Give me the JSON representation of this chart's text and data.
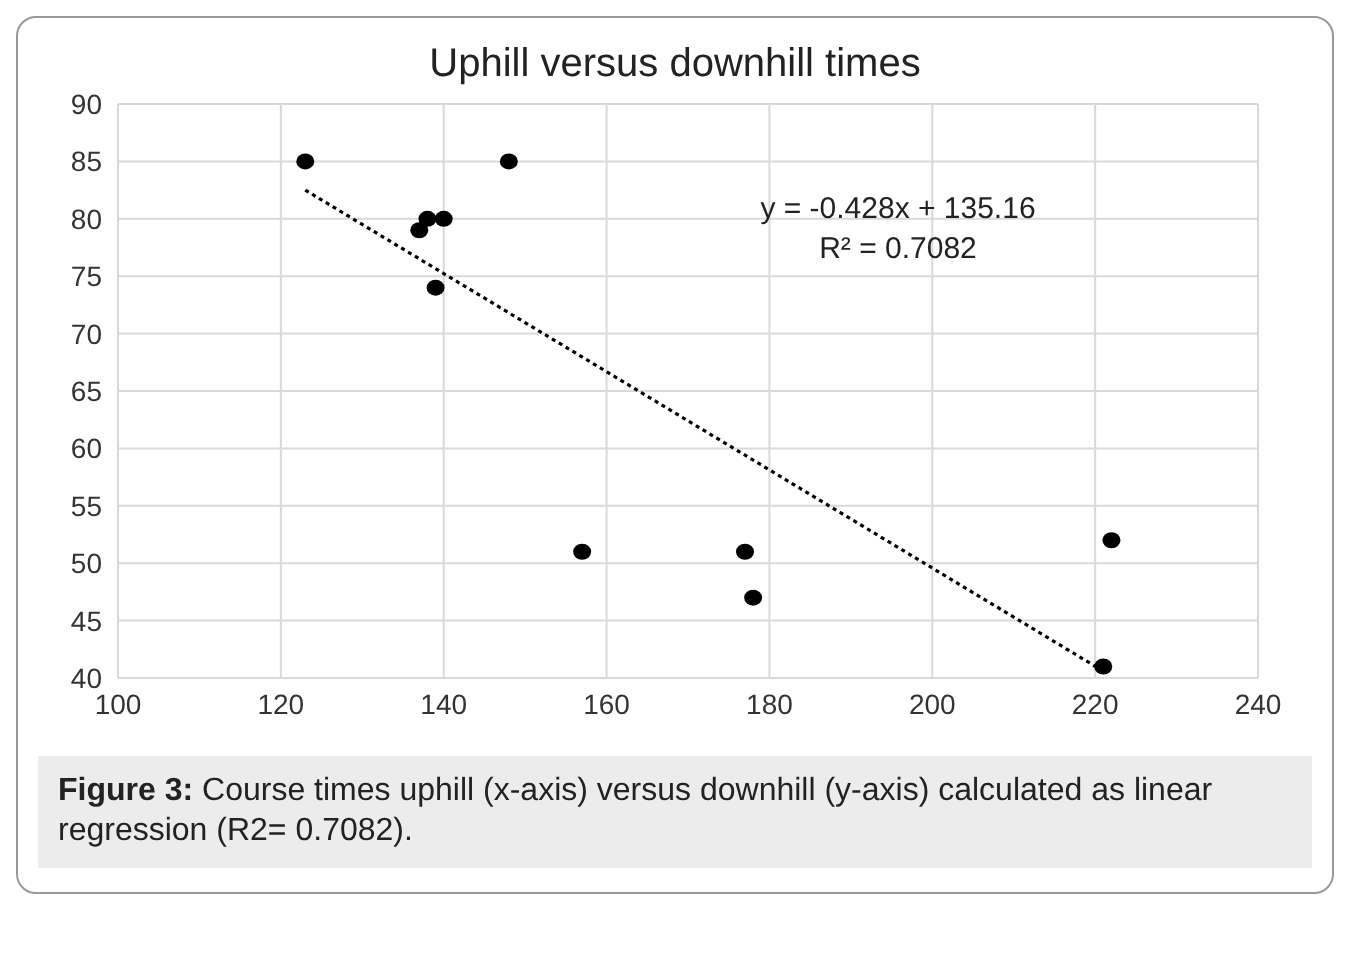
{
  "chart_data": {
    "type": "scatter",
    "title": "Uphill versus downhill times",
    "x": [
      123,
      137,
      138,
      140,
      139,
      148,
      157,
      177,
      178,
      221,
      222
    ],
    "series": [
      {
        "color": "#000000",
        "values": [
          85,
          79,
          80,
          80,
          74,
          85,
          51,
          51,
          47,
          41,
          52
        ]
      },
      {
        "type": "line",
        "color": "#000000",
        "x": [
          123,
          221
        ],
        "values": [
          82.5,
          40.6
        ],
        "line_style": "dotted",
        "marker": "none"
      }
    ],
    "xlim": [
      100,
      240
    ],
    "xticks": [
      100,
      120,
      140,
      160,
      180,
      200,
      220,
      240
    ],
    "ylim": [
      40,
      90
    ],
    "yticks": [
      40,
      45,
      50,
      55,
      60,
      65,
      70,
      75,
      80,
      85,
      90
    ],
    "grid": true,
    "marker": "circle",
    "annotations": [
      "y = -0.428x + 135.16",
      "R² = 0.7082",
      "Figure 3: Course times uphill (x-axis) versus downhill (y-axis) calculated as linear regression (R2= 0.7082)."
    ]
  }
}
